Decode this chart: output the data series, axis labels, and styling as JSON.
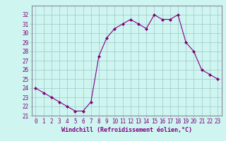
{
  "x": [
    0,
    1,
    2,
    3,
    4,
    5,
    6,
    7,
    8,
    9,
    10,
    11,
    12,
    13,
    14,
    15,
    16,
    17,
    18,
    19,
    20,
    21,
    22,
    23
  ],
  "y": [
    24,
    23.5,
    23,
    22.5,
    22,
    21.5,
    21.5,
    22.5,
    27.5,
    29.5,
    30.5,
    31,
    31.5,
    31,
    30.5,
    32,
    31.5,
    31.5,
    32,
    29,
    28,
    26,
    25.5,
    25
  ],
  "line_color": "#800080",
  "marker": "D",
  "marker_size": 2,
  "bg_color": "#cef5f0",
  "grid_color": "#a0c8c8",
  "xlabel": "Windchill (Refroidissement éolien,°C)",
  "ylim": [
    21,
    33
  ],
  "xlim": [
    -0.5,
    23.5
  ],
  "yticks": [
    21,
    22,
    23,
    24,
    25,
    26,
    27,
    28,
    29,
    30,
    31,
    32
  ],
  "xticks": [
    0,
    1,
    2,
    3,
    4,
    5,
    6,
    7,
    8,
    9,
    10,
    11,
    12,
    13,
    14,
    15,
    16,
    17,
    18,
    19,
    20,
    21,
    22,
    23
  ],
  "tick_fontsize": 5.5,
  "xlabel_fontsize": 6.0,
  "figsize": [
    3.2,
    2.0
  ],
  "dpi": 100
}
